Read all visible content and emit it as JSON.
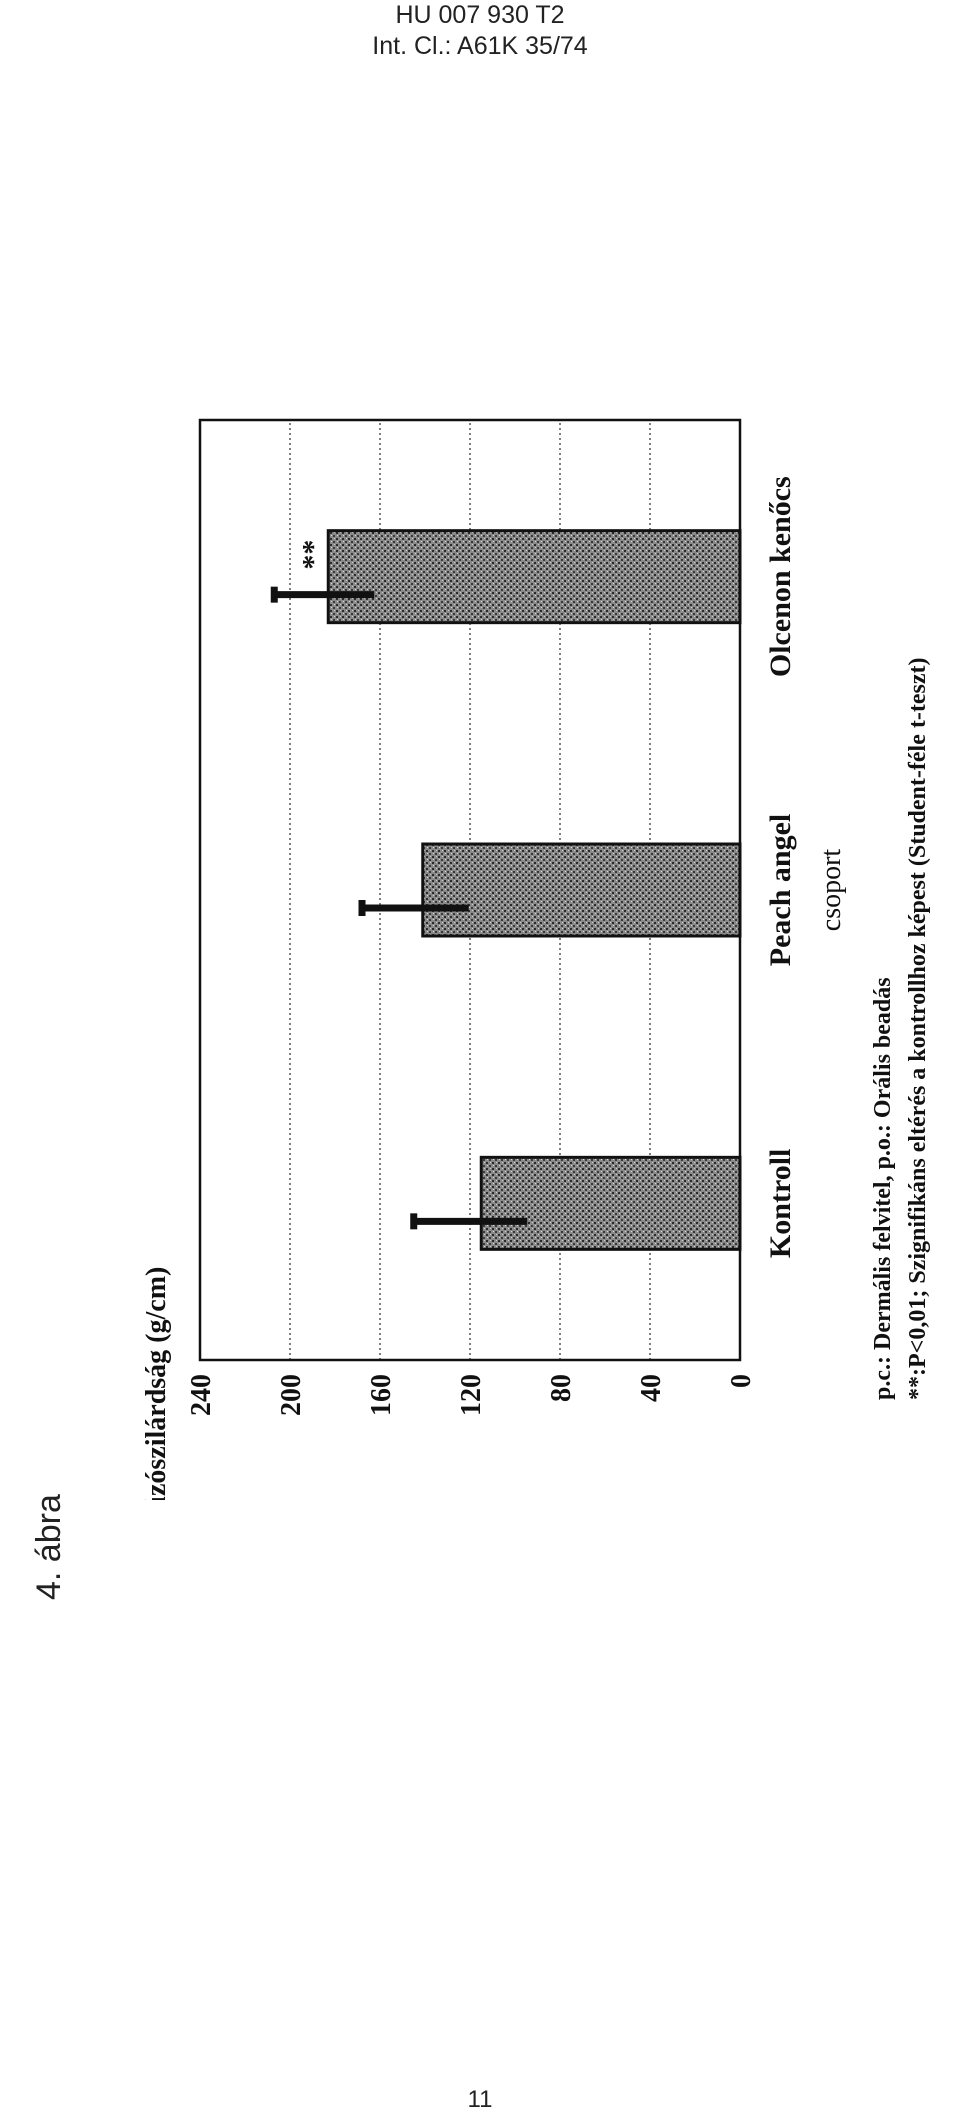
{
  "header": {
    "doc_number": "HU 007 930 T2",
    "classification": "Int. Cl.: A61K 35/74"
  },
  "figure_label": "4. ábra",
  "page_number": "11",
  "chart_data": {
    "type": "bar",
    "ylabel": "Húzószilárdság (g/cm)",
    "xlabel": "csoport",
    "categories": [
      "Kontroll",
      "Peach angel",
      "Olcenon kenőcs"
    ],
    "values": [
      115,
      141,
      183
    ],
    "error_upper": [
      145,
      168,
      207
    ],
    "annotations": [
      "",
      "",
      "**"
    ],
    "yticks": [
      "0",
      "40",
      "80",
      "120",
      "160",
      "200",
      "240"
    ],
    "ylim": [
      0,
      240
    ],
    "grid": true,
    "colors": {
      "bar_fill": "#7a7a7a",
      "bar_edge": "#111111",
      "error_bar": "#111111",
      "grid": "#555555"
    }
  },
  "footnotes": [
    "p.c.: Dermális felvitel, p.o.: Orális beadás",
    "**:P<0,01; Szignifikáns eltérés a kontrollhoz képest (Student-féle t-teszt)"
  ]
}
